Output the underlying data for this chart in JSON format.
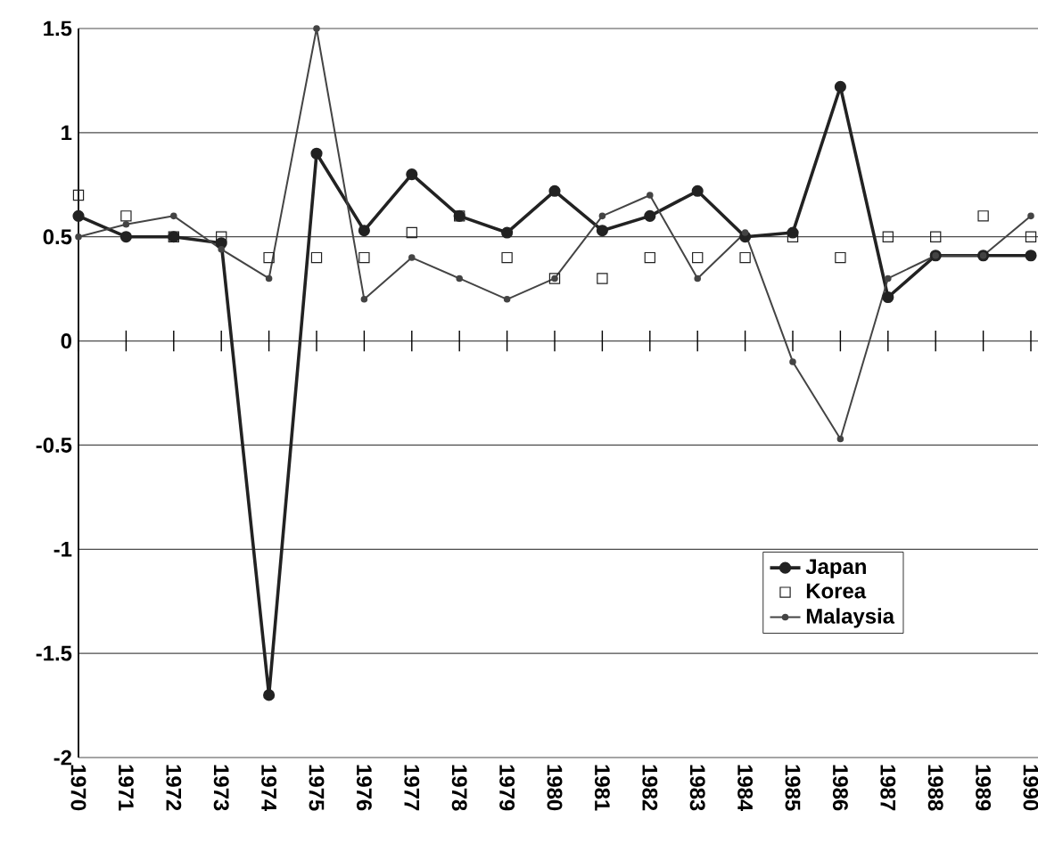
{
  "chart_data": {
    "type": "line",
    "categories": [
      "1970",
      "1971",
      "1972",
      "1973",
      "1974",
      "1975",
      "1976",
      "1977",
      "1978",
      "1979",
      "1980",
      "1981",
      "1982",
      "1983",
      "1984",
      "1985",
      "1986",
      "1987",
      "1988",
      "1989",
      "1990"
    ],
    "series": [
      {
        "name": "Japan",
        "marker": "circle",
        "color": "#222222",
        "values": [
          0.6,
          0.5,
          0.5,
          0.47,
          -1.7,
          0.9,
          0.53,
          0.8,
          0.6,
          0.52,
          0.72,
          0.53,
          0.6,
          0.72,
          0.5,
          0.52,
          1.22,
          0.21,
          0.41,
          0.41,
          0.41
        ]
      },
      {
        "name": "Korea",
        "type": "scatter",
        "marker": "square",
        "color": "#222222",
        "values": [
          0.7,
          0.6,
          0.5,
          0.5,
          0.4,
          0.4,
          0.4,
          0.52,
          0.6,
          0.4,
          0.3,
          0.3,
          0.4,
          0.4,
          0.4,
          0.5,
          0.4,
          0.5,
          0.5,
          0.6,
          0.5
        ]
      },
      {
        "name": "Malaysia",
        "marker": "circle",
        "color": "#444444",
        "values": [
          0.5,
          0.56,
          0.6,
          0.44,
          0.3,
          1.5,
          0.2,
          0.4,
          0.3,
          0.2,
          0.3,
          0.6,
          0.7,
          0.3,
          0.52,
          -0.1,
          -0.47,
          0.3,
          0.41,
          0.41,
          0.6
        ]
      }
    ],
    "ylim": [
      -2,
      1.5
    ],
    "yticks": [
      -2,
      -1.5,
      -1,
      -0.5,
      0,
      0.5,
      1,
      1.5
    ],
    "grid": "y",
    "legend": "bottom right"
  }
}
